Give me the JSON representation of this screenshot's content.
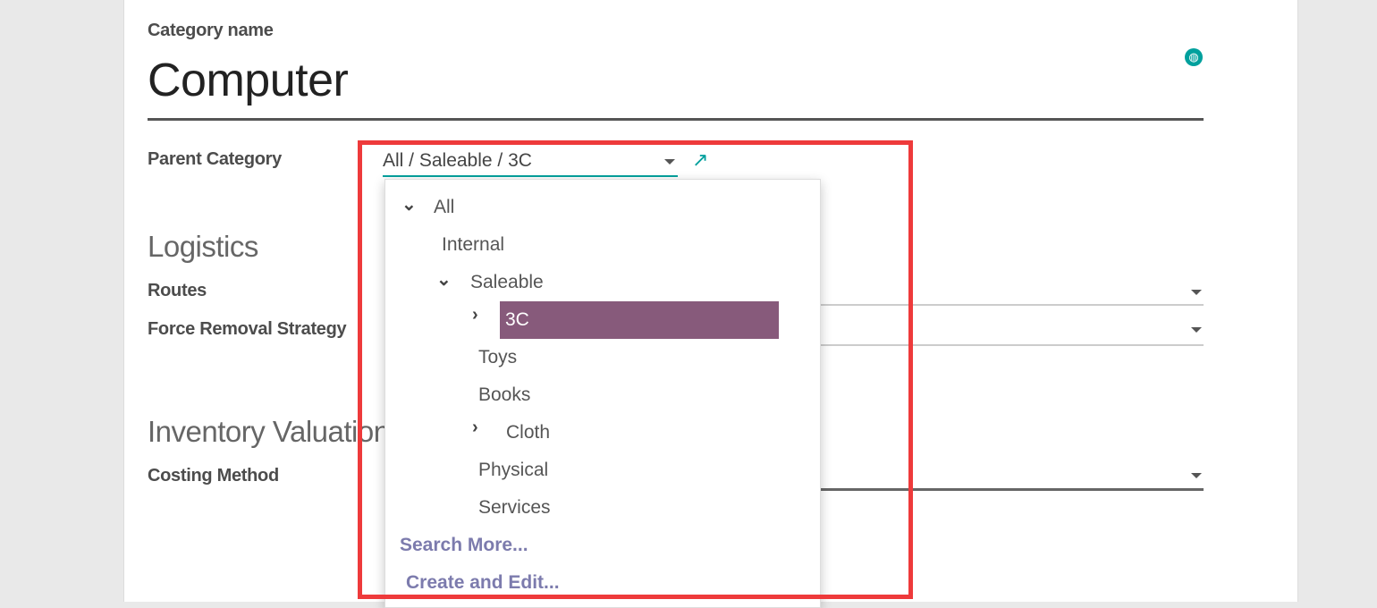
{
  "form": {
    "name_label": "Category name",
    "name_value": "Computer",
    "parent_label": "Parent Category",
    "parent_value": "All / Saleable / 3C",
    "logistics_heading": "Logistics",
    "routes_label": "Routes",
    "removal_label": "Force Removal Strategy",
    "valuation_heading": "Inventory Valuation",
    "costing_label": "Costing Method"
  },
  "dropdown": {
    "items": [
      {
        "label": "All",
        "icon": "chevron-down-icon"
      },
      {
        "label": "Internal"
      },
      {
        "label": "Saleable",
        "icon": "chevron-down-icon"
      },
      {
        "label": "3C",
        "icon": "chevron-right-icon",
        "selected": true
      },
      {
        "label": "Toys"
      },
      {
        "label": "Books"
      },
      {
        "label": "Cloth",
        "icon": "chevron-right-icon"
      },
      {
        "label": "Physical"
      },
      {
        "label": "Services"
      }
    ],
    "search_more": "Search More...",
    "create_edit": "Create and Edit..."
  },
  "colors": {
    "accent": "#00a09d",
    "highlight": "#875a7b",
    "link": "#7c7bad",
    "annotation": "#ee3a3b"
  }
}
